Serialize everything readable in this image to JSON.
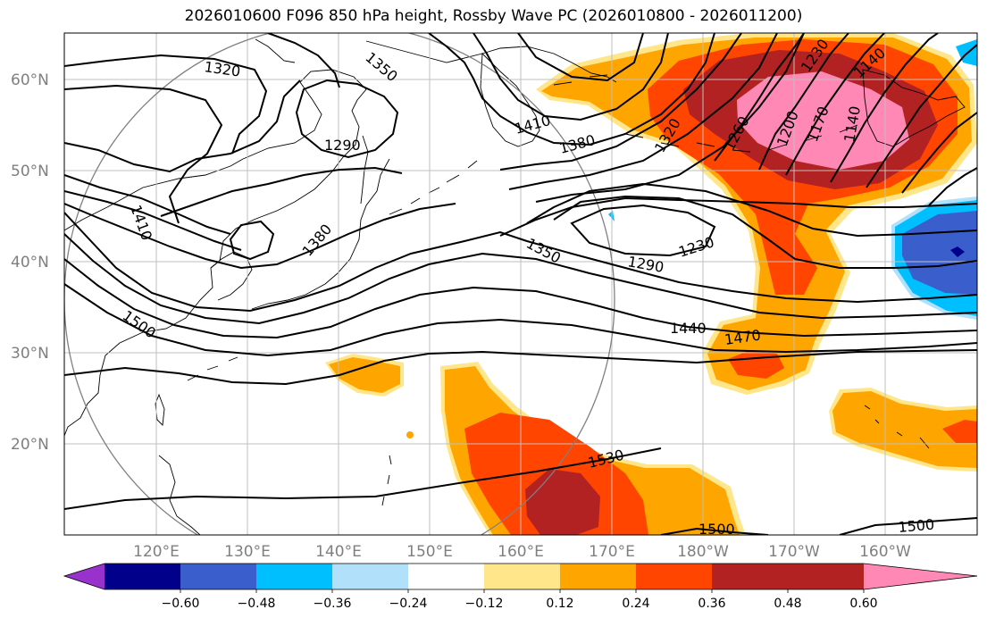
{
  "title": "2026010600 F096 850 hPa height, Rossby Wave PC (2026010800 - 2026011200)",
  "map": {
    "lon_range": [
      110,
      210
    ],
    "lat_range": [
      10,
      65
    ],
    "lat_labels": [
      "20°N",
      "30°N",
      "40°N",
      "50°N",
      "60°N"
    ],
    "lon_labels": [
      "120°E",
      "130°E",
      "140°E",
      "150°E",
      "160°E",
      "170°E",
      "180°W",
      "170°W",
      "160°W"
    ],
    "contour_labels": [
      "1320",
      "1350",
      "1410",
      "1380",
      "1290",
      "1410",
      "1380",
      "1500",
      "1350",
      "1290",
      "1230",
      "1320",
      "1260",
      "1200",
      "1170",
      "1230",
      "1140",
      "1140",
      "1440",
      "1470",
      "1530",
      "1500",
      "1500"
    ]
  },
  "colorbar": {
    "labels": [
      "−0.60",
      "−0.48",
      "−0.36",
      "−0.24",
      "−0.12",
      "0.12",
      "0.24",
      "0.36",
      "0.48",
      "0.60"
    ],
    "colors": [
      "#9932cc",
      "#00008b",
      "#3a5fcd",
      "#00bfff",
      "#b0e0fa",
      "#ffffff",
      "#ffe68a",
      "#ffa500",
      "#ff4500",
      "#b22222",
      "#ff88b4"
    ]
  }
}
